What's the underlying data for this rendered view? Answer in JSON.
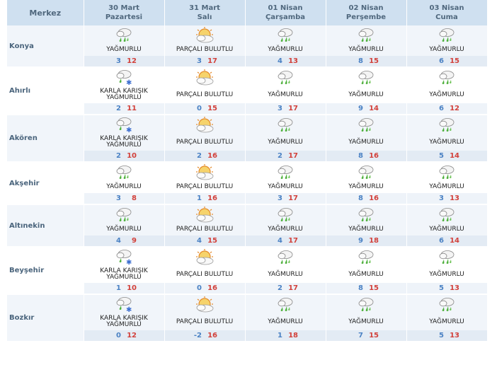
{
  "header": {
    "merkez": "Merkez",
    "days": [
      {
        "date": "30 Mart",
        "day": "Pazartesi"
      },
      {
        "date": "31 Mart",
        "day": "Salı"
      },
      {
        "date": "01 Nisan",
        "day": "Çarşamba"
      },
      {
        "date": "02 Nisan",
        "day": "Perşembe"
      },
      {
        "date": "03 Nisan",
        "day": "Cuma"
      }
    ]
  },
  "colors": {
    "header_bg": "#cfe0f0",
    "row_shade": "#f1f5fa",
    "min_temp": "#4b82c4",
    "max_temp": "#d2413b",
    "city_text": "#4a647c"
  },
  "rows": [
    {
      "city": "Konya",
      "forecasts": [
        {
          "icon": "rain-cloud-icon",
          "desc": "YAĞMURLU",
          "min": "3",
          "max": "12"
        },
        {
          "icon": "partly-cloudy-icon",
          "desc": "PARÇALI BULUTLU",
          "min": "3",
          "max": "17"
        },
        {
          "icon": "rain-cloud-icon",
          "desc": "YAĞMURLU",
          "min": "4",
          "max": "13"
        },
        {
          "icon": "rain-cloud-icon",
          "desc": "YAĞMURLU",
          "min": "8",
          "max": "15"
        },
        {
          "icon": "rain-cloud-icon",
          "desc": "YAĞMURLU",
          "min": "6",
          "max": "15"
        }
      ]
    },
    {
      "city": "Ahırlı",
      "forecasts": [
        {
          "icon": "sleet-cloud-icon",
          "desc": "KARLA KARIŞIK YAĞMURLU",
          "min": "2",
          "max": "11"
        },
        {
          "icon": "partly-cloudy-icon",
          "desc": "PARÇALI BULUTLU",
          "min": "0",
          "max": "15"
        },
        {
          "icon": "rain-cloud-icon",
          "desc": "YAĞMURLU",
          "min": "3",
          "max": "17"
        },
        {
          "icon": "rain-cloud-icon",
          "desc": "YAĞMURLU",
          "min": "9",
          "max": "14"
        },
        {
          "icon": "rain-cloud-icon",
          "desc": "YAĞMURLU",
          "min": "6",
          "max": "12"
        }
      ]
    },
    {
      "city": "Akören",
      "forecasts": [
        {
          "icon": "sleet-cloud-icon",
          "desc": "KARLA KARIŞIK YAĞMURLU",
          "min": "2",
          "max": "10"
        },
        {
          "icon": "partly-cloudy-icon",
          "desc": "PARÇALI BULUTLU",
          "min": "2",
          "max": "16"
        },
        {
          "icon": "rain-cloud-icon",
          "desc": "YAĞMURLU",
          "min": "2",
          "max": "17"
        },
        {
          "icon": "rain-cloud-icon",
          "desc": "YAĞMURLU",
          "min": "8",
          "max": "16"
        },
        {
          "icon": "rain-cloud-icon",
          "desc": "YAĞMURLU",
          "min": "5",
          "max": "14"
        }
      ]
    },
    {
      "city": "Akşehir",
      "forecasts": [
        {
          "icon": "rain-cloud-icon",
          "desc": "YAĞMURLU",
          "min": "3",
          "max": "8"
        },
        {
          "icon": "partly-cloudy-icon",
          "desc": "PARÇALI BULUTLU",
          "min": "1",
          "max": "16"
        },
        {
          "icon": "rain-cloud-icon",
          "desc": "YAĞMURLU",
          "min": "3",
          "max": "17"
        },
        {
          "icon": "rain-cloud-icon",
          "desc": "YAĞMURLU",
          "min": "8",
          "max": "16"
        },
        {
          "icon": "rain-cloud-icon",
          "desc": "YAĞMURLU",
          "min": "3",
          "max": "13"
        }
      ]
    },
    {
      "city": "Altınekin",
      "forecasts": [
        {
          "icon": "rain-cloud-icon",
          "desc": "YAĞMURLU",
          "min": "4",
          "max": "9"
        },
        {
          "icon": "partly-cloudy-icon",
          "desc": "PARÇALI BULUTLU",
          "min": "4",
          "max": "15"
        },
        {
          "icon": "rain-cloud-icon",
          "desc": "YAĞMURLU",
          "min": "4",
          "max": "17"
        },
        {
          "icon": "rain-cloud-icon",
          "desc": "YAĞMURLU",
          "min": "9",
          "max": "18"
        },
        {
          "icon": "rain-cloud-icon",
          "desc": "YAĞMURLU",
          "min": "6",
          "max": "14"
        }
      ]
    },
    {
      "city": "Beyşehir",
      "forecasts": [
        {
          "icon": "sleet-cloud-icon",
          "desc": "KARLA KARIŞIK YAĞMURLU",
          "min": "1",
          "max": "10"
        },
        {
          "icon": "partly-cloudy-icon",
          "desc": "PARÇALI BULUTLU",
          "min": "0",
          "max": "16"
        },
        {
          "icon": "rain-cloud-icon",
          "desc": "YAĞMURLU",
          "min": "2",
          "max": "17"
        },
        {
          "icon": "rain-cloud-icon",
          "desc": "YAĞMURLU",
          "min": "8",
          "max": "15"
        },
        {
          "icon": "rain-cloud-icon",
          "desc": "YAĞMURLU",
          "min": "5",
          "max": "13"
        }
      ]
    },
    {
      "city": "Bozkır",
      "forecasts": [
        {
          "icon": "sleet-cloud-icon",
          "desc": "KARLA KARIŞIK YAĞMURLU",
          "min": "0",
          "max": "12"
        },
        {
          "icon": "partly-cloudy-icon",
          "desc": "PARÇALI BULUTLU",
          "min": "-2",
          "max": "16"
        },
        {
          "icon": "rain-cloud-icon",
          "desc": "YAĞMURLU",
          "min": "1",
          "max": "18"
        },
        {
          "icon": "rain-cloud-icon",
          "desc": "YAĞMURLU",
          "min": "7",
          "max": "15"
        },
        {
          "icon": "rain-cloud-icon",
          "desc": "YAĞMURLU",
          "min": "5",
          "max": "13"
        }
      ]
    }
  ]
}
